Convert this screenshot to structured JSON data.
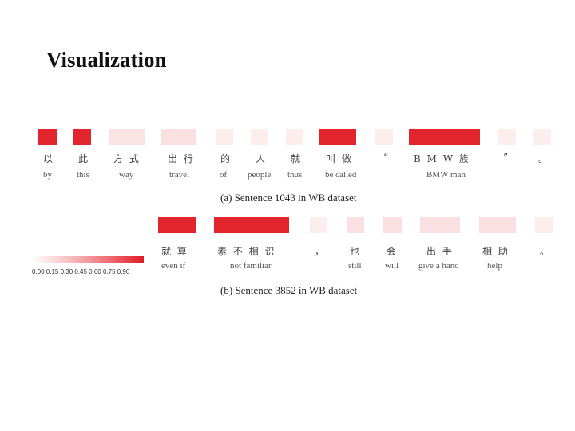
{
  "title": "Visualization",
  "sentence_a": {
    "caption": "(a) Sentence 1043 in WB dataset",
    "tokens": [
      {
        "zh": "以",
        "en": "by",
        "weight": 0.95
      },
      {
        "zh": "此",
        "en": "this",
        "weight": 0.95
      },
      {
        "zh": "方 式",
        "en": "way",
        "weight": 0.15
      },
      {
        "zh": "出 行",
        "en": "travel",
        "weight": 0.15
      },
      {
        "zh": "的",
        "en": "of",
        "weight": 0.1
      },
      {
        "zh": "人",
        "en": "people",
        "weight": 0.1
      },
      {
        "zh": "就",
        "en": "thus",
        "weight": 0.1
      },
      {
        "zh": "叫 做",
        "en": "be called",
        "weight": 0.95
      },
      {
        "zh": "“",
        "en": "",
        "weight": 0.1
      },
      {
        "zh": "B  M  W 族",
        "en": "BMW man",
        "weight": 0.95
      },
      {
        "zh": "”",
        "en": "",
        "weight": 0.1
      },
      {
        "zh": "。",
        "en": "",
        "weight": 0.1
      }
    ]
  },
  "sentence_b": {
    "caption": "(b) Sentence 3852 in WB dataset",
    "tokens": [
      {
        "zh": "就 算",
        "en": "even if",
        "weight": 0.95
      },
      {
        "zh": "素 不 相 识",
        "en": "not familiar",
        "weight": 0.95
      },
      {
        "zh": "，",
        "en": "",
        "weight": 0.1
      },
      {
        "zh": "也",
        "en": "still",
        "weight": 0.15
      },
      {
        "zh": "会",
        "en": "will",
        "weight": 0.15
      },
      {
        "zh": "出 手",
        "en": "give a hand",
        "weight": 0.15
      },
      {
        "zh": "相 助",
        "en": "help",
        "weight": 0.15
      },
      {
        "zh": "。",
        "en": "",
        "weight": 0.1
      }
    ]
  },
  "colorbar": {
    "ticks": "0.00 0.15 0.30 0.45 0.60 0.75 0.90"
  }
}
